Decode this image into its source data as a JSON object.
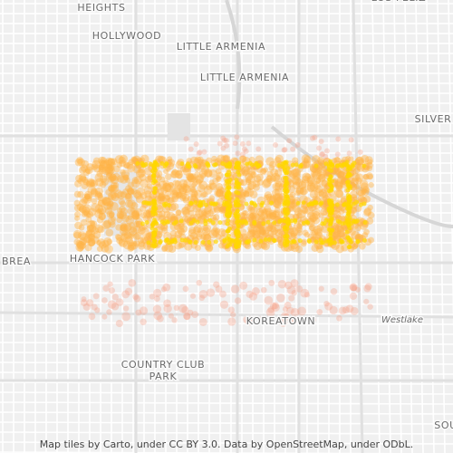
{
  "labels": [
    "LOS FELIZ",
    "HEIGHTS",
    "HOLLYWOOD",
    "LITTLE ARMENIA",
    "LITTLE ARMENIA",
    "SILVER",
    "BREA",
    "HANCOCK PARK",
    "KOREATOWN",
    "Westlake",
    "COUNTRY CLUB",
    "PARK",
    "SOU"
  ],
  "attribution": "Map tiles by Carto, under CC BY 3.0. Data by OpenStreetMap, under ODbL."
}
